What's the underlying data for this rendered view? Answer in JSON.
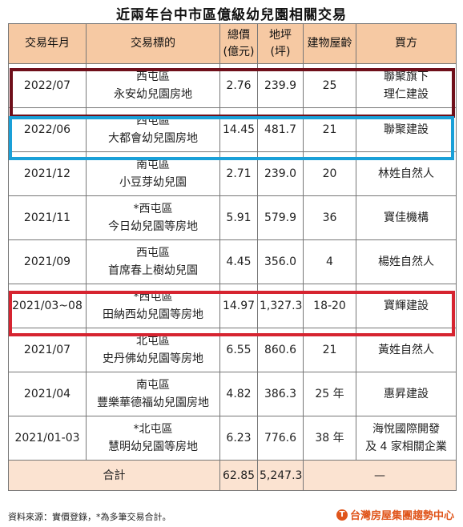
{
  "title": "近兩年台中市區億級幼兒園相關交易",
  "headers": {
    "date": "交易年月",
    "target": "交易標的",
    "price_line1": "總價",
    "price_line2": "(億元)",
    "area_line1": "地坪",
    "area_line2": "(坪)",
    "age": "建物屋齡",
    "buyer": "買方"
  },
  "rows": [
    {
      "date": "2022/07",
      "district": "西屯區",
      "name": "永安幼兒園房地",
      "price": "2.76",
      "area": "239.9",
      "age": "25",
      "buyer1": "聯聚旗下",
      "buyer2": "理仁建設"
    },
    {
      "date": "2022/06",
      "district": "西屯區",
      "name": "大都會幼兒園房地",
      "price": "14.45",
      "area": "481.7",
      "age": "21",
      "buyer1": "聯聚建設",
      "buyer2": ""
    },
    {
      "date": "2021/12",
      "district": "南屯區",
      "name": "小豆芽幼兒園",
      "price": "2.71",
      "area": "239.0",
      "age": "20",
      "buyer1": "林姓自然人",
      "buyer2": ""
    },
    {
      "date": "2021/11",
      "district": "*西屯區",
      "name": "今日幼兒園等房地",
      "price": "5.91",
      "area": "579.9",
      "age": "36",
      "buyer1": "寶佳機構",
      "buyer2": ""
    },
    {
      "date": "2021/09",
      "district": "西屯區",
      "name": "首席春上樹幼兒園",
      "price": "4.45",
      "area": "356.0",
      "age": "4",
      "buyer1": "楊姓自然人",
      "buyer2": ""
    },
    {
      "date": "2021/03~08",
      "district": "*西屯區",
      "name": "田納西幼兒園等房地",
      "price": "14.97",
      "area": "1,327.3",
      "age": "18-20",
      "buyer1": "寶輝建設",
      "buyer2": ""
    },
    {
      "date": "2021/07",
      "district": "北屯區",
      "name": "史丹佛幼兒園等房地",
      "price": "6.55",
      "area": "860.6",
      "age": "21",
      "buyer1": "黃姓自然人",
      "buyer2": ""
    },
    {
      "date": "2021/04",
      "district": "南屯區",
      "name": "豐樂華德福幼兒園房地",
      "price": "4.82",
      "area": "386.3",
      "age": "25 年",
      "buyer1": "惠昇建設",
      "buyer2": ""
    },
    {
      "date": "2021/01-03",
      "district": "*北屯區",
      "name": "慧明幼兒園等房地",
      "price": "6.23",
      "area": "776.6",
      "age": "38 年",
      "buyer1": "海悅國際開發",
      "buyer2": "及 4 家相關企業"
    }
  ],
  "total": {
    "label": "合計",
    "price": "62.85",
    "area": "5,247.3",
    "dash": "—"
  },
  "footnote": "資料來源：實價登錄，*為多筆交易合計。",
  "brand": {
    "logo_char": "T",
    "name": "台灣房屋集團趨勢中心"
  },
  "colors": {
    "header_bg": "#f6c9a3",
    "total_bg": "#fbe3d1",
    "highlight_dark": "#6f0f1a",
    "highlight_blue": "#1aa0d8",
    "highlight_red": "#d62430",
    "brand": "#e0551b"
  }
}
